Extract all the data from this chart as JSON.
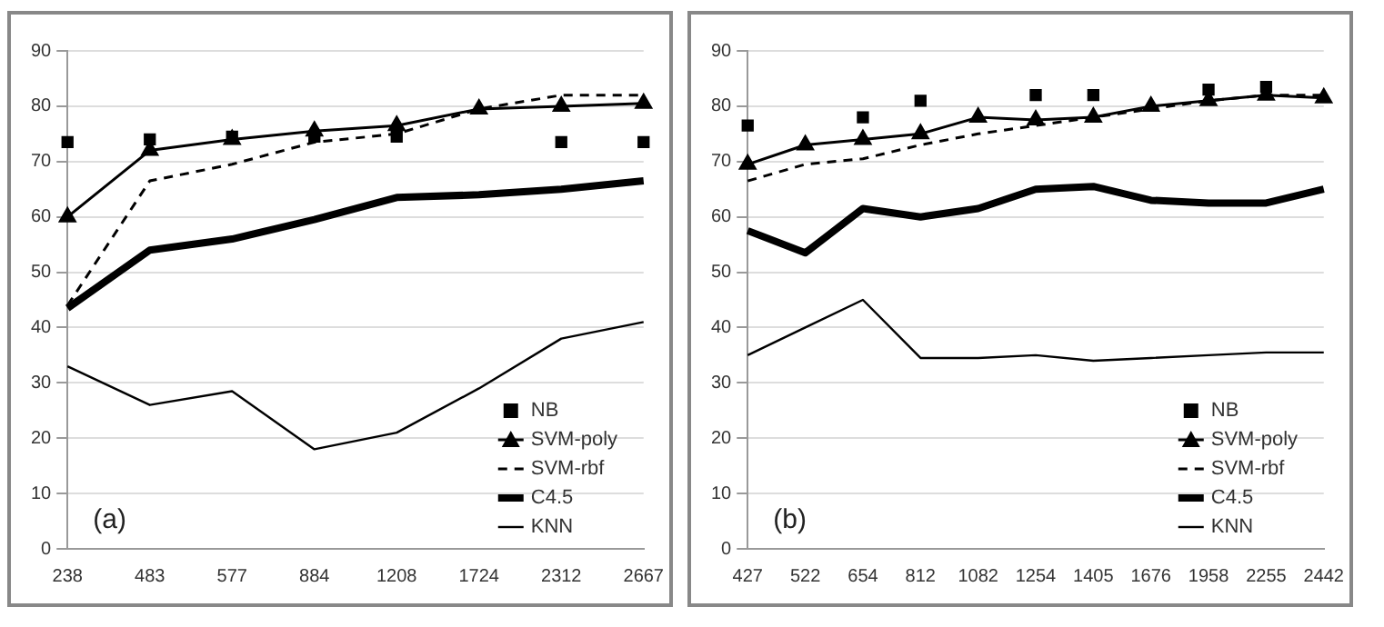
{
  "chart_data": [
    {
      "type": "line",
      "categories": [
        "238",
        "483",
        "577",
        "884",
        "1208",
        "1724",
        "2312",
        "2667"
      ],
      "ylim": [
        0,
        90
      ],
      "yticks": [
        0,
        10,
        20,
        30,
        40,
        50,
        60,
        70,
        80,
        90
      ],
      "grid": "y",
      "legend": "bottom right",
      "annotations": [
        "(a)"
      ],
      "series": [
        {
          "name": "NB",
          "type": "scatter",
          "marker": "square",
          "color": "#000000",
          "values": [
            73.5,
            74,
            74.5,
            74.5,
            74.5,
            null,
            73.5,
            73.5
          ]
        },
        {
          "name": "SVM-poly",
          "marker": "triangle",
          "line_style": "solid",
          "color": "#000000",
          "values": [
            60,
            72,
            74,
            75.5,
            76.5,
            79.5,
            80,
            80.5
          ]
        },
        {
          "name": "SVM-rbf",
          "marker": "none",
          "line_style": "dashed",
          "color": "#000000",
          "values": [
            44,
            66.5,
            69.5,
            73.5,
            75,
            79.5,
            82,
            82
          ]
        },
        {
          "name": "C4.5",
          "marker": "none",
          "line_style": "solid",
          "color": "#000000",
          "values": [
            43.5,
            54,
            56,
            59.5,
            63.5,
            64,
            65,
            66.5
          ]
        },
        {
          "name": "KNN",
          "marker": "none",
          "line_style": "solid",
          "color": "#000000",
          "values": [
            33,
            26,
            28.5,
            18,
            21,
            29,
            38,
            41
          ]
        }
      ]
    },
    {
      "type": "line",
      "categories": [
        "427",
        "522",
        "654",
        "812",
        "1082",
        "1254",
        "1405",
        "1676",
        "1958",
        "2255",
        "2442"
      ],
      "ylim": [
        0,
        90
      ],
      "yticks": [
        0,
        10,
        20,
        30,
        40,
        50,
        60,
        70,
        80,
        90
      ],
      "grid": "y",
      "legend": "bottom right",
      "annotations": [
        "(b)"
      ],
      "series": [
        {
          "name": "NB",
          "type": "scatter",
          "marker": "square",
          "color": "#000000",
          "values": [
            76.5,
            null,
            78,
            81,
            null,
            82,
            82,
            null,
            83,
            83.5,
            null
          ]
        },
        {
          "name": "SVM-poly",
          "marker": "triangle",
          "line_style": "solid",
          "color": "#000000",
          "values": [
            69.5,
            73,
            74,
            75,
            78,
            77.5,
            78,
            80,
            81,
            82,
            81.5
          ]
        },
        {
          "name": "SVM-rbf",
          "marker": "none",
          "line_style": "dashed",
          "color": "#000000",
          "values": [
            66.5,
            69.5,
            70.5,
            73,
            75,
            76.5,
            78,
            79.5,
            81,
            82,
            82
          ]
        },
        {
          "name": "C4.5",
          "marker": "none",
          "line_style": "solid",
          "color": "#000000",
          "values": [
            57.5,
            53.5,
            61.5,
            60,
            61.5,
            65,
            65.5,
            63,
            62.5,
            62.5,
            65
          ]
        },
        {
          "name": "KNN",
          "marker": "none",
          "line_style": "solid",
          "color": "#000000",
          "values": [
            35,
            40,
            45,
            34.5,
            34.5,
            35,
            34,
            34.5,
            35,
            35.5,
            35.5
          ]
        }
      ]
    }
  ]
}
